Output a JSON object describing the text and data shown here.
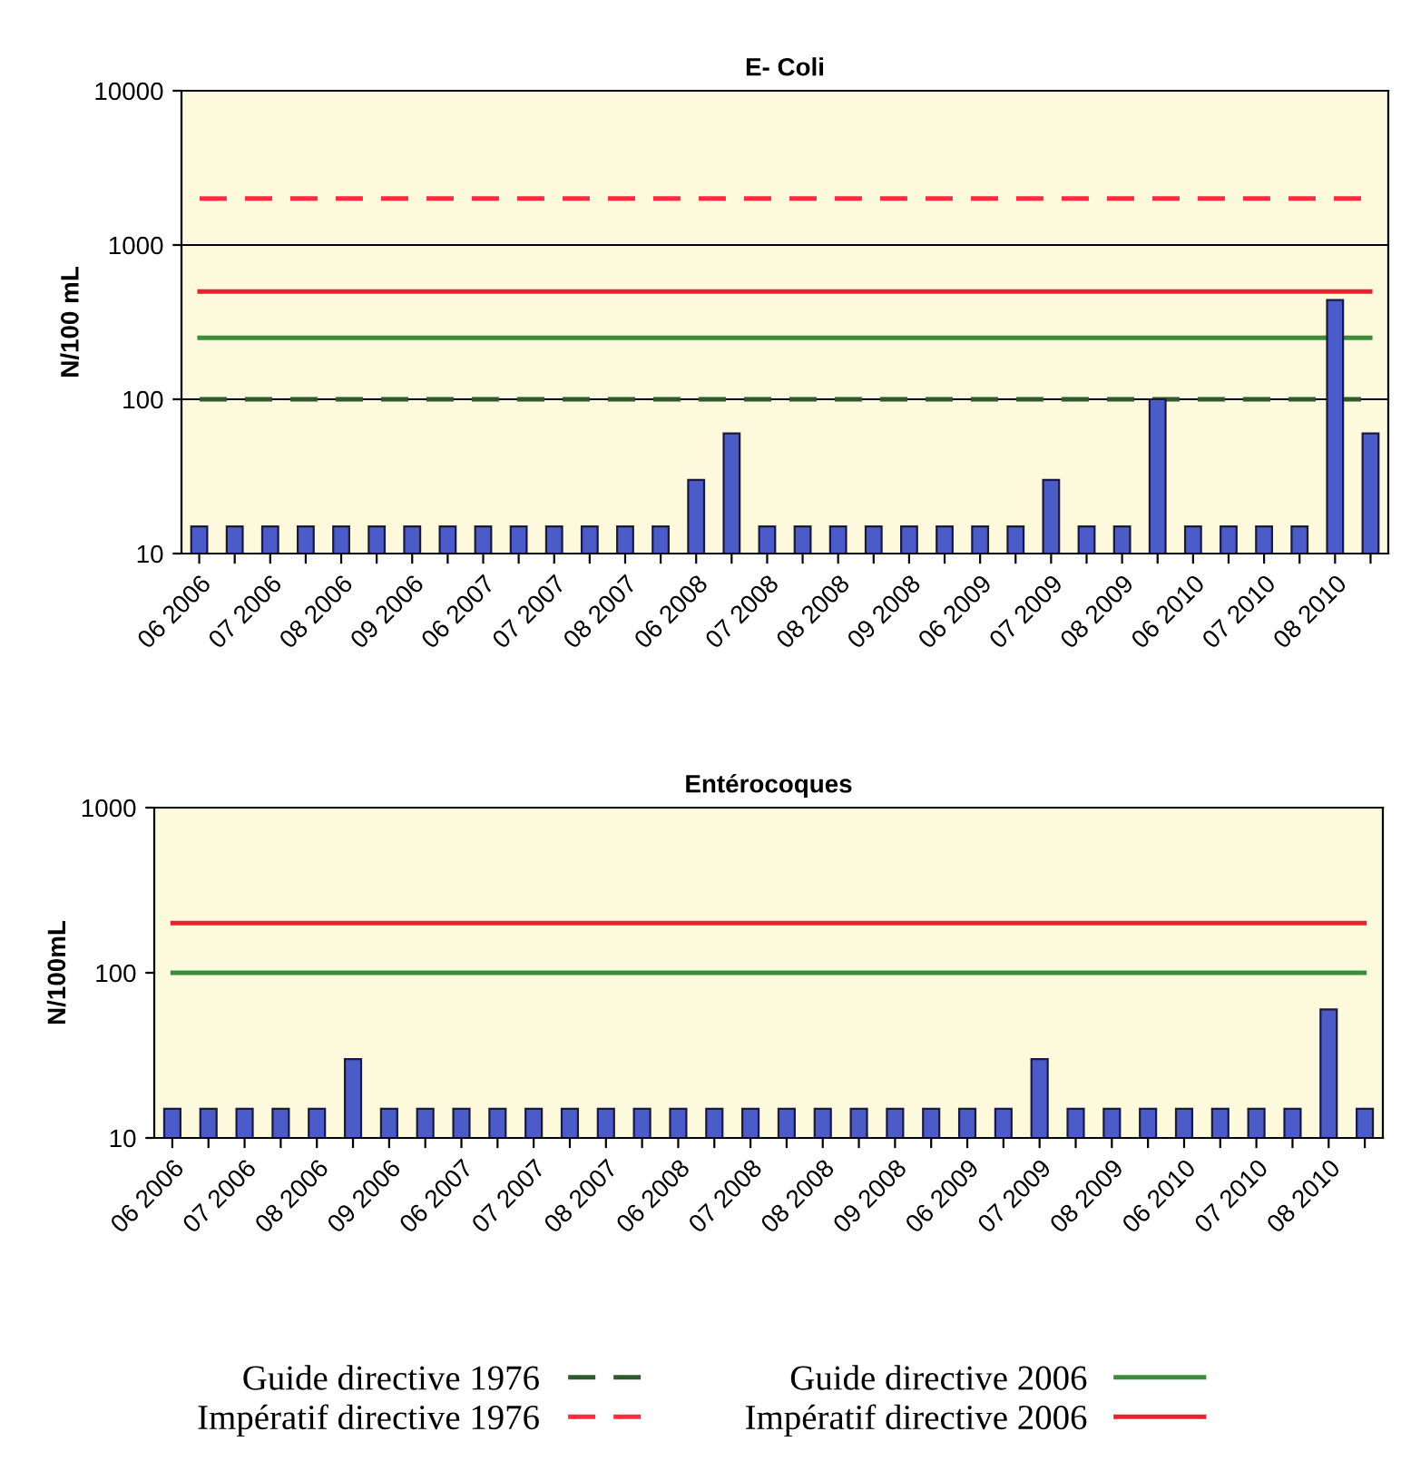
{
  "chart_data": [
    {
      "type": "bar",
      "title": "E- Coli",
      "ylabel": "N/100 mL",
      "log": "y",
      "ylim": [
        10,
        10000
      ],
      "yticks": [
        10,
        100,
        1000,
        10000
      ],
      "grid": "y",
      "legend": "bottom",
      "categories": [
        "06 2006",
        null,
        "07 2006",
        null,
        "08 2006",
        null,
        "09 2006",
        null,
        "06 2007",
        null,
        "07 2007",
        null,
        "08 2007",
        null,
        "06 2008",
        null,
        "07 2008",
        null,
        "08 2008",
        null,
        "09 2008",
        null,
        "06 2009",
        null,
        "07 2009",
        null,
        "08 2009",
        null,
        "06 2010",
        null,
        "07 2010",
        null,
        "08 2010",
        null
      ],
      "values": [
        15,
        15,
        15,
        15,
        15,
        15,
        15,
        15,
        15,
        15,
        15,
        15,
        15,
        15,
        30,
        60,
        15,
        15,
        15,
        15,
        15,
        15,
        15,
        15,
        30,
        15,
        15,
        100,
        15,
        15,
        15,
        15,
        440,
        60
      ],
      "color": "#4b5cc8",
      "ref_lines": [
        {
          "axis": "y",
          "value": 100,
          "label": "Guide directive 1976",
          "color": "#2e5a2e",
          "line_style": "dashed"
        },
        {
          "axis": "y",
          "value": 2000,
          "label": "Impératif directive 1976",
          "color": "#ff2a40",
          "line_style": "dashed"
        },
        {
          "axis": "y",
          "value": 250,
          "label": "Guide directive 2006",
          "color": "#3c8c3c",
          "line_style": "solid"
        },
        {
          "axis": "y",
          "value": 500,
          "label": "Impératif directive 2006",
          "color": "#ee2030",
          "line_style": "solid"
        }
      ]
    },
    {
      "type": "bar",
      "title": "Entérocoques",
      "ylabel": "N/100mL",
      "log": "y",
      "ylim": [
        10,
        1000
      ],
      "yticks": [
        10,
        100,
        1000
      ],
      "categories": [
        "06 2006",
        null,
        "07 2006",
        null,
        "08 2006",
        null,
        "09 2006",
        null,
        "06 2007",
        null,
        "07 2007",
        null,
        "08 2007",
        null,
        "06 2008",
        null,
        "07 2008",
        null,
        "08 2008",
        null,
        "09 2008",
        null,
        "06 2009",
        null,
        "07 2009",
        null,
        "08 2009",
        null,
        "06 2010",
        null,
        "07 2010",
        null,
        "08 2010",
        null
      ],
      "values": [
        15,
        15,
        15,
        15,
        15,
        30,
        15,
        15,
        15,
        15,
        15,
        15,
        15,
        15,
        15,
        15,
        15,
        15,
        15,
        15,
        15,
        15,
        15,
        15,
        30,
        15,
        15,
        15,
        15,
        15,
        15,
        15,
        60,
        15
      ],
      "color": "#4b5cc8",
      "ref_lines": [
        {
          "axis": "y",
          "value": 100,
          "color": "#3c8c3c",
          "line_style": "solid"
        },
        {
          "axis": "y",
          "value": 200,
          "color": "#ee2030",
          "line_style": "solid"
        }
      ]
    }
  ]
}
